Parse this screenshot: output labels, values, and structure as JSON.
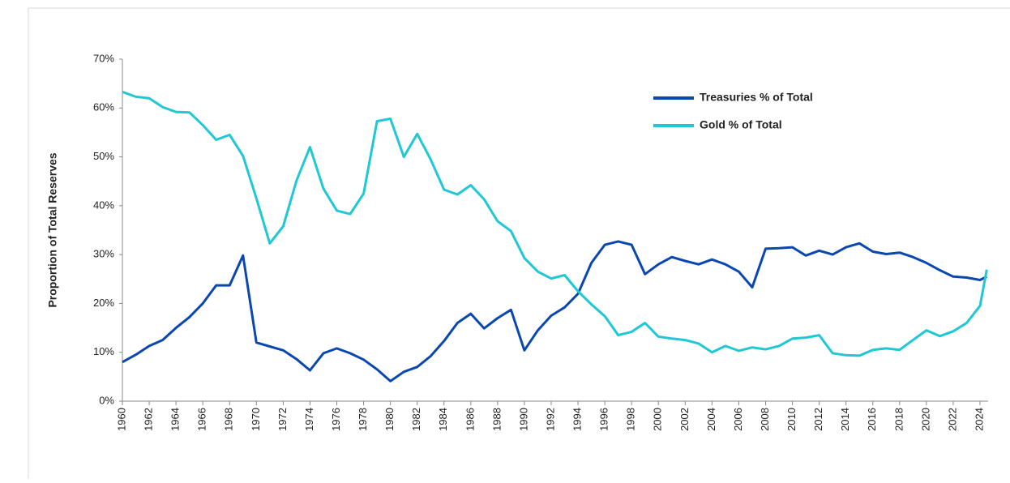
{
  "chart_data": {
    "type": "line",
    "y_label": "Proportion of Total Reserves",
    "x": [
      1960,
      1961,
      1962,
      1963,
      1964,
      1965,
      1966,
      1967,
      1968,
      1969,
      1970,
      1971,
      1972,
      1973,
      1974,
      1975,
      1976,
      1977,
      1978,
      1979,
      1980,
      1981,
      1982,
      1983,
      1984,
      1985,
      1986,
      1987,
      1988,
      1989,
      1990,
      1991,
      1992,
      1993,
      1994,
      1995,
      1996,
      1997,
      1998,
      1999,
      2000,
      2001,
      2002,
      2003,
      2004,
      2005,
      2006,
      2007,
      2008,
      2009,
      2010,
      2011,
      2012,
      2013,
      2014,
      2015,
      2016,
      2017,
      2018,
      2019,
      2020,
      2021,
      2022,
      2023,
      2024,
      2024.5
    ],
    "series": [
      {
        "name": "Treasuries % of Total",
        "color": "#0a47b1",
        "values": [
          8,
          9.5,
          11.3,
          12.5,
          15,
          17.2,
          20,
          23.7,
          23.7,
          29.8,
          12,
          11.2,
          10.4,
          8.6,
          6.3,
          9.8,
          10.8,
          9.8,
          8.5,
          6.5,
          4.1,
          6,
          7,
          9.2,
          12.3,
          16,
          17.9,
          14.9,
          17,
          18.7,
          10.4,
          14.5,
          17.5,
          19.2,
          22,
          28.3,
          32,
          32.7,
          32,
          26,
          28,
          29.5,
          28.7,
          28,
          29,
          28,
          26.5,
          23.3,
          31.2,
          31.3,
          31.5,
          29.8,
          30.8,
          30,
          31.5,
          32.3,
          30.6,
          30.1,
          30.4,
          29.5,
          28.3,
          26.8,
          25.5,
          25.3,
          24.8,
          25.5
        ]
      },
      {
        "name": "Gold % of Total",
        "color": "#1ec8d4",
        "values": [
          63.3,
          62.3,
          62,
          60.2,
          59.2,
          59.1,
          56.5,
          53.5,
          54.5,
          50.2,
          41.5,
          32.3,
          35.8,
          45.2,
          52,
          43.5,
          39,
          38.3,
          42.5,
          57.3,
          57.8,
          50,
          54.7,
          49.5,
          43.3,
          42.3,
          44.2,
          41.3,
          36.8,
          34.8,
          29.3,
          26.5,
          25.1,
          25.8,
          22.5,
          19.8,
          17.4,
          13.5,
          14.2,
          16,
          13.2,
          12.8,
          12.5,
          11.8,
          10,
          11.3,
          10.3,
          11,
          10.6,
          11.3,
          12.8,
          13,
          13.5,
          9.8,
          9.4,
          9.3,
          10.5,
          10.8,
          10.5,
          12.5,
          14.5,
          13.3,
          14.3,
          16,
          19.5,
          26.9
        ]
      }
    ],
    "xlim": [
      1960,
      2024.6
    ],
    "xticks": [
      1960,
      1962,
      1964,
      1966,
      1968,
      1970,
      1972,
      1974,
      1976,
      1978,
      1980,
      1982,
      1984,
      1986,
      1988,
      1990,
      1992,
      1994,
      1996,
      1998,
      2000,
      2002,
      2004,
      2006,
      2008,
      2010,
      2012,
      2014,
      2016,
      2018,
      2020,
      2022,
      2024
    ],
    "ylim": [
      0,
      70
    ],
    "yticks": [
      {
        "value": 0,
        "label": "0%"
      },
      {
        "value": 10,
        "label": "10%"
      },
      {
        "value": 20,
        "label": "20%"
      },
      {
        "value": 30,
        "label": "30%"
      },
      {
        "value": 40,
        "label": "40%"
      },
      {
        "value": 50,
        "label": "50%"
      },
      {
        "value": 60,
        "label": "60%"
      },
      {
        "value": 70,
        "label": "70%"
      }
    ],
    "grid": false,
    "legend": "upper right"
  }
}
